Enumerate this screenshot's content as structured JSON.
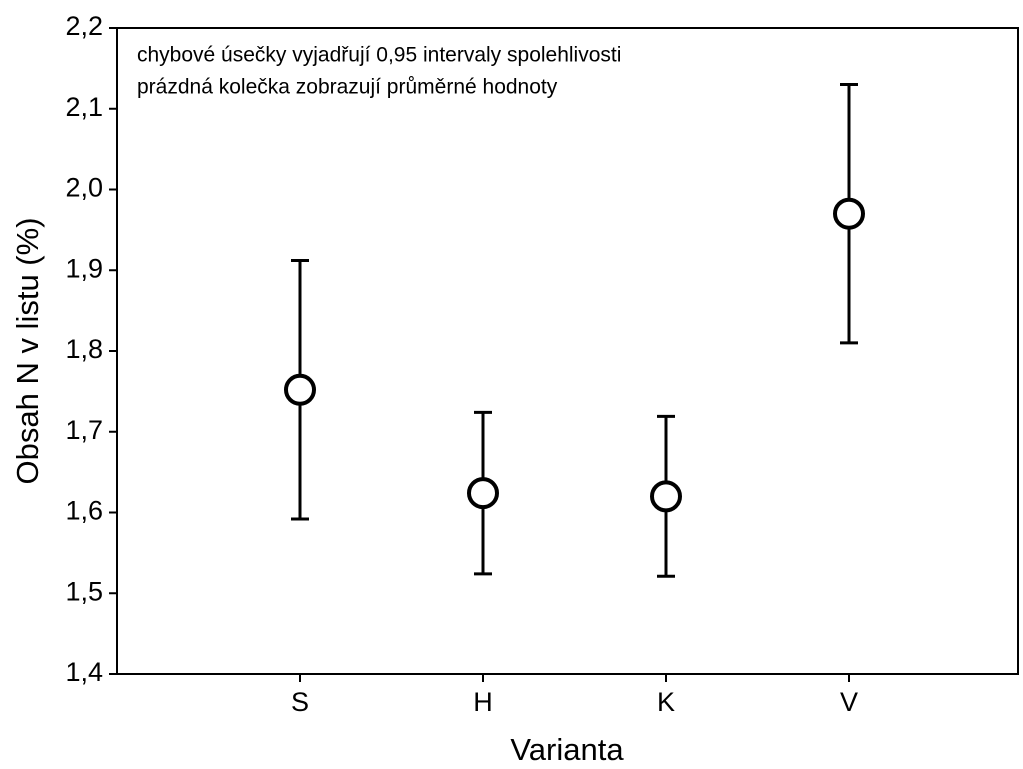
{
  "chart_data": {
    "type": "errorbar",
    "annotations": [
      "chybové úsečky vyjadřují 0,95 intervaly spolehlivosti",
      "prázdná kolečka zobrazují průměrné hodnoty"
    ],
    "xlabel": "Varianta",
    "ylabel": "Obsah N v listu (%)",
    "categories": [
      "S",
      "H",
      "K",
      "V"
    ],
    "values": [
      1.752,
      1.624,
      1.62,
      1.97
    ],
    "errors": [
      0.16,
      0.1,
      0.099,
      0.16
    ],
    "color": "#000000",
    "ylim": [
      1.4,
      2.2
    ],
    "yticks": [
      {
        "value": 1.4,
        "label": "1,4"
      },
      {
        "value": 1.5,
        "label": "1,5"
      },
      {
        "value": 1.6,
        "label": "1,6"
      },
      {
        "value": 1.7,
        "label": "1,7"
      },
      {
        "value": 1.8,
        "label": "1,8"
      },
      {
        "value": 1.9,
        "label": "1,9"
      },
      {
        "value": 2.0,
        "label": "2,0"
      },
      {
        "value": 2.1,
        "label": "2,1"
      },
      {
        "value": 2.2,
        "label": "2,2"
      }
    ],
    "grid": false
  }
}
